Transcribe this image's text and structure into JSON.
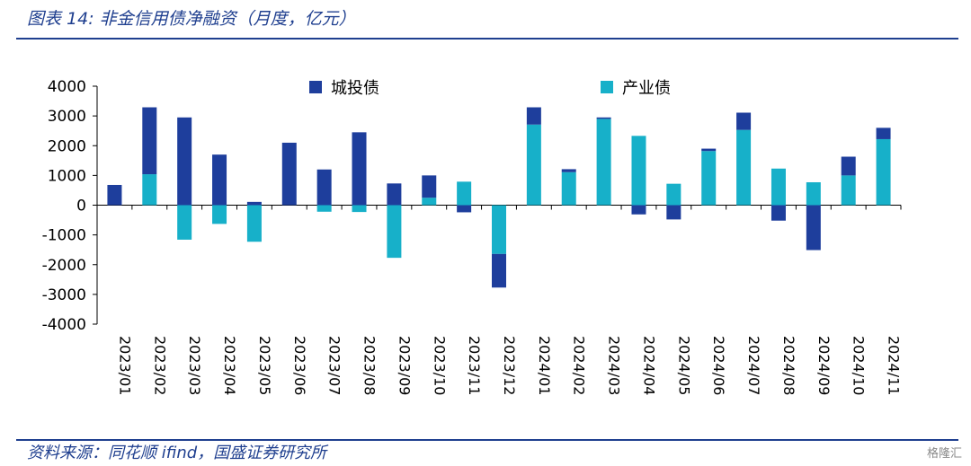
{
  "header": {
    "title": "图表 14:  非金信用债净融资（月度，亿元）"
  },
  "footer": {
    "source": "资料来源：同花顺 ifind，国盛证券研究所",
    "watermark": "格隆汇"
  },
  "colors": {
    "series1": "#1e3e9c",
    "series2": "#17b0c9",
    "accent": "#1f3f8f"
  },
  "chart_data": {
    "type": "bar",
    "stacked": true,
    "categories": [
      "2023/01",
      "2023/02",
      "2023/03",
      "2023/04",
      "2023/05",
      "2023/06",
      "2023/07",
      "2023/08",
      "2023/09",
      "2023/10",
      "2023/11",
      "2023/12",
      "2024/01",
      "2024/02",
      "2024/03",
      "2024/04",
      "2024/05",
      "2024/06",
      "2024/07",
      "2024/08",
      "2024/09",
      "2024/10",
      "2024/11"
    ],
    "series": [
      {
        "name": "城投债",
        "values": [
          680,
          2250,
          2950,
          1700,
          110,
          2100,
          1200,
          2450,
          730,
          750,
          -240,
          -1130,
          580,
          100,
          50,
          -310,
          -480,
          80,
          580,
          -520,
          -1510,
          630,
          380
        ]
      },
      {
        "name": "产业债",
        "values": [
          0,
          1040,
          -1160,
          -630,
          -1230,
          0,
          -220,
          -230,
          -1770,
          250,
          790,
          -1640,
          2710,
          1110,
          2900,
          2330,
          720,
          1820,
          2530,
          1230,
          770,
          1000,
          2220
        ]
      }
    ],
    "yticks": [
      4000,
      3000,
      2000,
      1000,
      0,
      -1000,
      -2000,
      -3000,
      -4000
    ],
    "ylim": [
      -4000,
      4000
    ],
    "legend_position": "top"
  }
}
